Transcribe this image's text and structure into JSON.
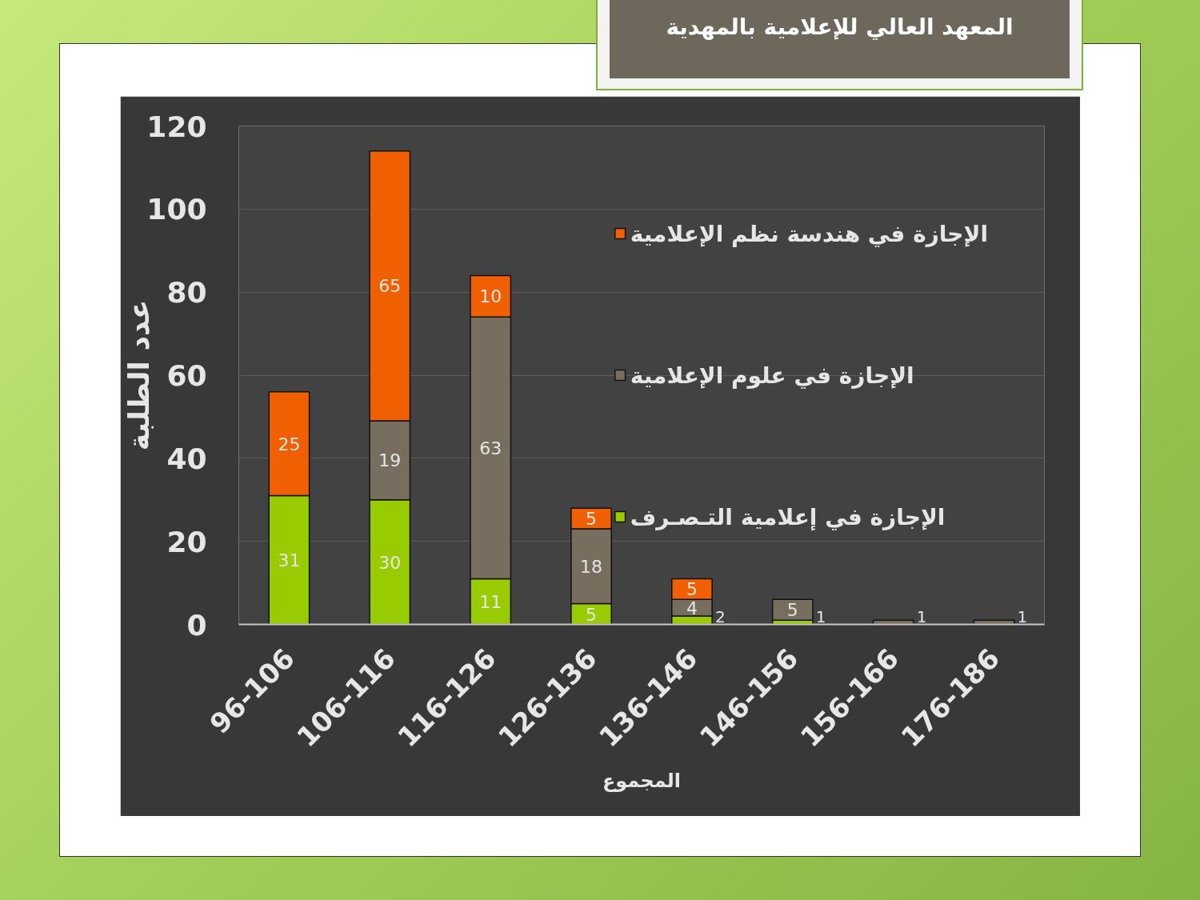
{
  "chart_data": {
    "type": "bar",
    "title": "المعهد العالي للإعلامية بالمهدية",
    "xlabel": "المجموع",
    "ylabel": "عدد الطلبة",
    "categories": [
      "96-106",
      "106-116",
      "116-126",
      "126-136",
      "136-146",
      "146-156",
      "156-166",
      "176-186"
    ],
    "stacked": true,
    "series": [
      {
        "name": "الإجازة في إعلامية التـصـرف",
        "color": "#99cc00",
        "values": [
          31,
          30,
          11,
          5,
          2,
          1,
          null,
          null
        ]
      },
      {
        "name": "الإجازة في علوم الإعلامية",
        "color": "#786e60",
        "values": [
          null,
          19,
          63,
          18,
          4,
          5,
          1,
          1
        ]
      },
      {
        "name": "الإجازة في هندسة نظم الإعلامية",
        "color": "#f06000",
        "values": [
          25,
          65,
          10,
          5,
          5,
          null,
          null,
          null
        ]
      }
    ],
    "ylim": [
      0,
      120
    ],
    "yticks": [
      0,
      20,
      40,
      60,
      80,
      100,
      120
    ],
    "grid": "y",
    "legend": "right",
    "data_labels": true
  }
}
